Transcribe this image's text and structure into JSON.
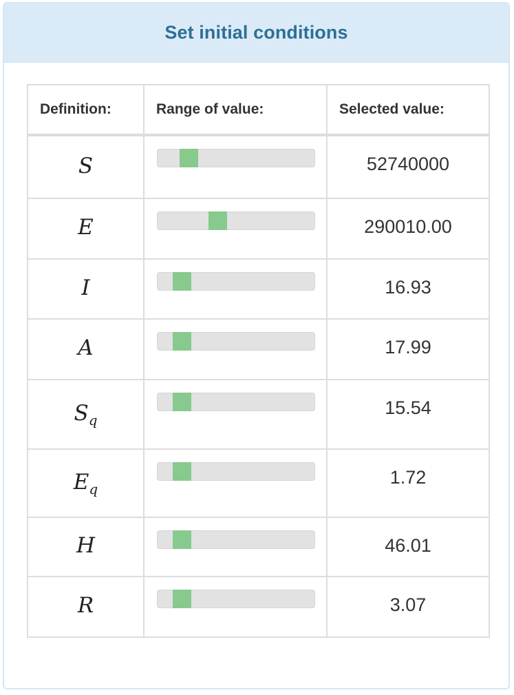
{
  "panel": {
    "title": "Set initial conditions"
  },
  "table": {
    "headers": {
      "definition": "Definition:",
      "range": "Range of value:",
      "selected": "Selected value:"
    },
    "rows": [
      {
        "symbol": "S",
        "subscript": "",
        "value": "52740000",
        "slider_fraction": 0.11
      },
      {
        "symbol": "E",
        "subscript": "",
        "value": "290010.00",
        "slider_fraction": 0.32
      },
      {
        "symbol": "I",
        "subscript": "",
        "value": "16.93",
        "slider_fraction": 0.06
      },
      {
        "symbol": "A",
        "subscript": "",
        "value": "17.99",
        "slider_fraction": 0.06
      },
      {
        "symbol": "S",
        "subscript": "q",
        "value": "15.54",
        "slider_fraction": 0.06
      },
      {
        "symbol": "E",
        "subscript": "q",
        "value": "1.72",
        "slider_fraction": 0.06
      },
      {
        "symbol": "H",
        "subscript": "",
        "value": "46.01",
        "slider_fraction": 0.06
      },
      {
        "symbol": "R",
        "subscript": "",
        "value": "3.07",
        "slider_fraction": 0.06
      }
    ]
  },
  "colors": {
    "header_bg": "#daebf7",
    "title": "#2f6f95",
    "slider_track": "#e2e2e2",
    "slider_thumb": "#88c98d"
  }
}
